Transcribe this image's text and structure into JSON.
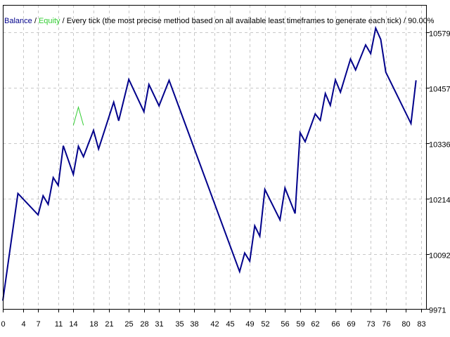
{
  "header": {
    "balance_label": "Balance",
    "sep1": " / ",
    "equity_label": "Equity",
    "sep2": " / ",
    "description": "Every tick (the most precise method based on all available least timeframes to generate each tick)",
    "sep3": " / ",
    "quality": "90.00%"
  },
  "colors": {
    "balance": "#00008b",
    "equity": "#32cd32",
    "grid": "#c8c8c8",
    "frame": "#000000",
    "background": "#ffffff"
  },
  "chart_data": {
    "type": "line",
    "grid": true,
    "xlim": [
      0,
      84
    ],
    "ylim": [
      9971,
      10640
    ],
    "x_ticks": [
      0,
      4,
      7,
      11,
      14,
      18,
      21,
      25,
      28,
      31,
      35,
      38,
      42,
      45,
      49,
      52,
      56,
      59,
      62,
      66,
      69,
      73,
      76,
      80,
      83
    ],
    "y_ticks": [
      9971,
      10092,
      10214,
      10336,
      10457,
      10579
    ],
    "series": [
      {
        "name": "Balance",
        "color": "#00008b",
        "x": [
          0,
          3,
          7,
          8,
          9,
          10,
          11,
          12,
          14,
          15,
          16,
          18,
          19,
          22,
          23,
          25,
          28,
          29,
          31,
          33,
          47,
          48,
          49,
          50,
          51,
          52,
          55,
          56,
          58,
          59,
          60,
          62,
          63,
          64,
          65,
          66,
          67,
          69,
          70,
          72,
          73,
          74,
          75,
          76,
          81,
          82
        ],
        "y": [
          9989,
          10225,
          10178,
          10220,
          10201,
          10260,
          10243,
          10330,
          10267,
          10329,
          10306,
          10364,
          10323,
          10426,
          10385,
          10476,
          10405,
          10465,
          10418,
          10474,
          10053,
          10094,
          10076,
          10154,
          10131,
          10234,
          10167,
          10237,
          10181,
          10359,
          10339,
          10400,
          10386,
          10445,
          10419,
          10475,
          10448,
          10521,
          10497,
          10552,
          10533,
          10589,
          10564,
          10492,
          10379,
          10474
        ]
      },
      {
        "name": "Equity",
        "color": "#32cd32",
        "x": [
          14,
          15,
          16
        ],
        "y": [
          10375,
          10415,
          10375
        ]
      }
    ]
  }
}
